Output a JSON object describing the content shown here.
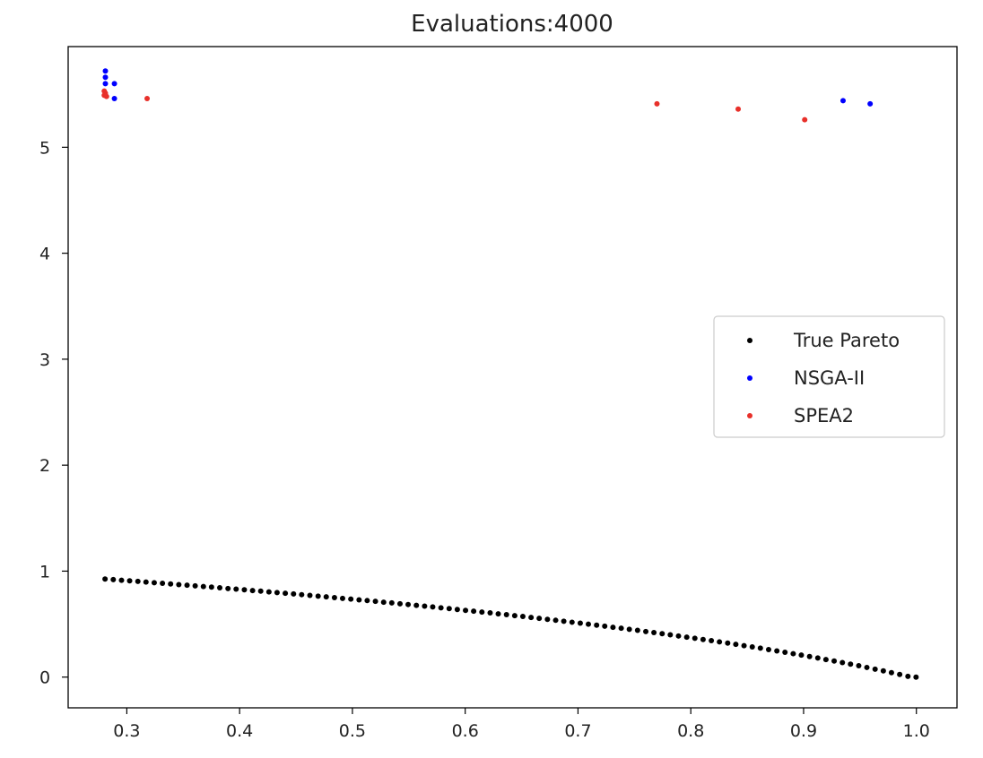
{
  "chart_data": {
    "type": "scatter",
    "title": "Evaluations:4000",
    "xlabel": "",
    "ylabel": "",
    "xlim": [
      0.248,
      1.036
    ],
    "ylim": [
      -0.29,
      5.95
    ],
    "xticks": [
      0.3,
      0.4,
      0.5,
      0.6,
      0.7,
      0.8,
      0.9,
      1.0
    ],
    "xtick_labels": [
      "0.3",
      "0.4",
      "0.5",
      "0.6",
      "0.7",
      "0.8",
      "0.9",
      "1.0"
    ],
    "yticks": [
      0,
      1,
      2,
      3,
      4,
      5
    ],
    "ytick_labels": [
      "0",
      "1",
      "2",
      "3",
      "4",
      "5"
    ],
    "grid": false,
    "legend_position": "center-right",
    "series": [
      {
        "name": "True Pareto",
        "color": "#000000",
        "x": [
          0.2807,
          0.288,
          0.2953,
          0.3025,
          0.3098,
          0.317,
          0.3243,
          0.3316,
          0.3388,
          0.3461,
          0.3534,
          0.3606,
          0.3679,
          0.3751,
          0.3824,
          0.3897,
          0.3969,
          0.4042,
          0.4115,
          0.4187,
          0.426,
          0.4332,
          0.4405,
          0.4478,
          0.455,
          0.4623,
          0.4696,
          0.4768,
          0.4841,
          0.4913,
          0.4986,
          0.5059,
          0.5131,
          0.5204,
          0.5277,
          0.5349,
          0.5422,
          0.5494,
          0.5567,
          0.564,
          0.5712,
          0.5785,
          0.5858,
          0.593,
          0.6003,
          0.6075,
          0.6148,
          0.6221,
          0.6293,
          0.6366,
          0.6439,
          0.6511,
          0.6584,
          0.6656,
          0.6729,
          0.6802,
          0.6874,
          0.6947,
          0.702,
          0.7092,
          0.7165,
          0.7237,
          0.731,
          0.7383,
          0.7455,
          0.7528,
          0.7601,
          0.7673,
          0.7746,
          0.7818,
          0.7891,
          0.7964,
          0.8036,
          0.8109,
          0.8182,
          0.8254,
          0.8327,
          0.8399,
          0.8472,
          0.8545,
          0.8617,
          0.869,
          0.8763,
          0.8835,
          0.8908,
          0.898,
          0.9053,
          0.9126,
          0.9198,
          0.9271,
          0.9344,
          0.9416,
          0.9489,
          0.9561,
          0.9634,
          0.9707,
          0.9779,
          0.9852,
          0.9925,
          0.9997
        ],
        "y": [
          0.925,
          0.92,
          0.914,
          0.909,
          0.903,
          0.897,
          0.891,
          0.885,
          0.879,
          0.873,
          0.867,
          0.861,
          0.855,
          0.849,
          0.843,
          0.836,
          0.83,
          0.824,
          0.817,
          0.811,
          0.804,
          0.798,
          0.791,
          0.785,
          0.778,
          0.771,
          0.764,
          0.757,
          0.75,
          0.743,
          0.736,
          0.729,
          0.722,
          0.715,
          0.707,
          0.7,
          0.692,
          0.685,
          0.677,
          0.67,
          0.662,
          0.654,
          0.646,
          0.638,
          0.63,
          0.622,
          0.614,
          0.606,
          0.597,
          0.589,
          0.58,
          0.572,
          0.563,
          0.554,
          0.545,
          0.536,
          0.527,
          0.518,
          0.509,
          0.499,
          0.49,
          0.48,
          0.47,
          0.461,
          0.451,
          0.441,
          0.43,
          0.42,
          0.41,
          0.399,
          0.388,
          0.377,
          0.366,
          0.355,
          0.344,
          0.332,
          0.321,
          0.309,
          0.297,
          0.285,
          0.273,
          0.26,
          0.247,
          0.234,
          0.221,
          0.208,
          0.194,
          0.18,
          0.166,
          0.152,
          0.137,
          0.122,
          0.107,
          0.091,
          0.075,
          0.059,
          0.042,
          0.025,
          0.007,
          0.0
        ]
      },
      {
        "name": "NSGA-II",
        "color": "#0000ff",
        "x": [
          0.281,
          0.281,
          0.281,
          0.289,
          0.289,
          0.935,
          0.959
        ],
        "y": [
          5.72,
          5.66,
          5.6,
          5.6,
          5.46,
          5.44,
          5.41
        ]
      },
      {
        "name": "SPEA2",
        "color": "#e8302a",
        "x": [
          0.28,
          0.281,
          0.28,
          0.282,
          0.318,
          0.77,
          0.842,
          0.901
        ],
        "y": [
          5.53,
          5.51,
          5.49,
          5.48,
          5.46,
          5.41,
          5.36,
          5.26
        ]
      }
    ]
  }
}
